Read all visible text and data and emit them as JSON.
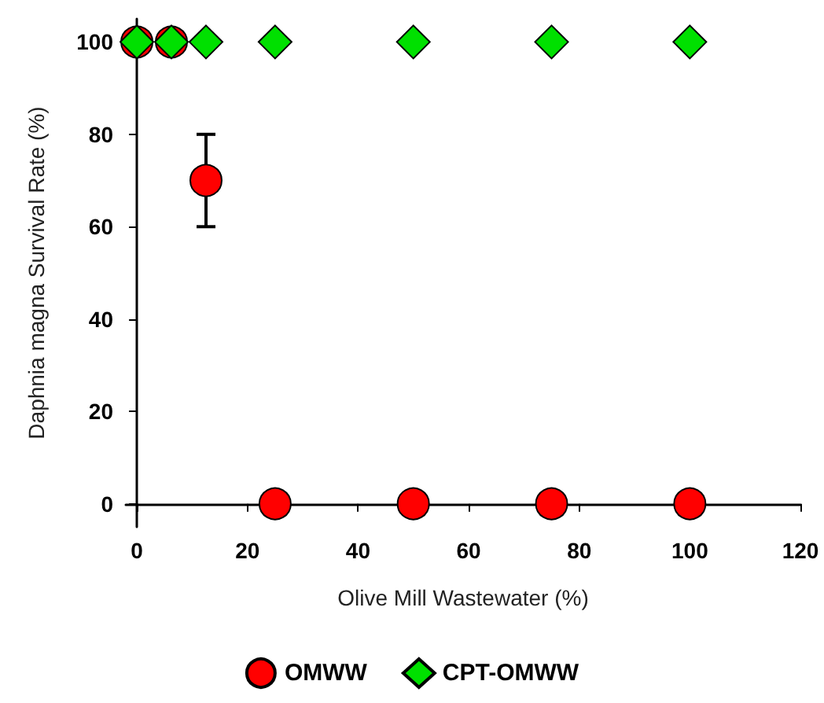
{
  "chart_data": {
    "type": "scatter",
    "xlabel": "Olive Mill Wastewater (%)",
    "ylabel": "Daphnia magna Survival Rate (%)",
    "series": [
      {
        "name": "OMWW",
        "color": "#ff0000",
        "marker": "circle",
        "x": [
          0,
          6.25,
          12.5,
          25,
          50,
          75,
          100
        ],
        "values": [
          100,
          100,
          70,
          0,
          0,
          0,
          0
        ],
        "errors": [
          null,
          null,
          10,
          null,
          null,
          null,
          null
        ]
      },
      {
        "name": "CPT-OMWW",
        "color": "#00e000",
        "marker": "diamond",
        "x": [
          0,
          6.25,
          12.5,
          25,
          50,
          75,
          100
        ],
        "values": [
          100,
          100,
          100,
          100,
          100,
          100,
          100
        ]
      }
    ],
    "xlim": [
      -2,
      120
    ],
    "xticks": [
      0,
      20,
      40,
      60,
      80,
      100,
      120
    ],
    "ylim": [
      -5,
      105
    ],
    "yticks": [
      0,
      20,
      40,
      60,
      80,
      100
    ],
    "grid": false,
    "legend": "bottom"
  }
}
